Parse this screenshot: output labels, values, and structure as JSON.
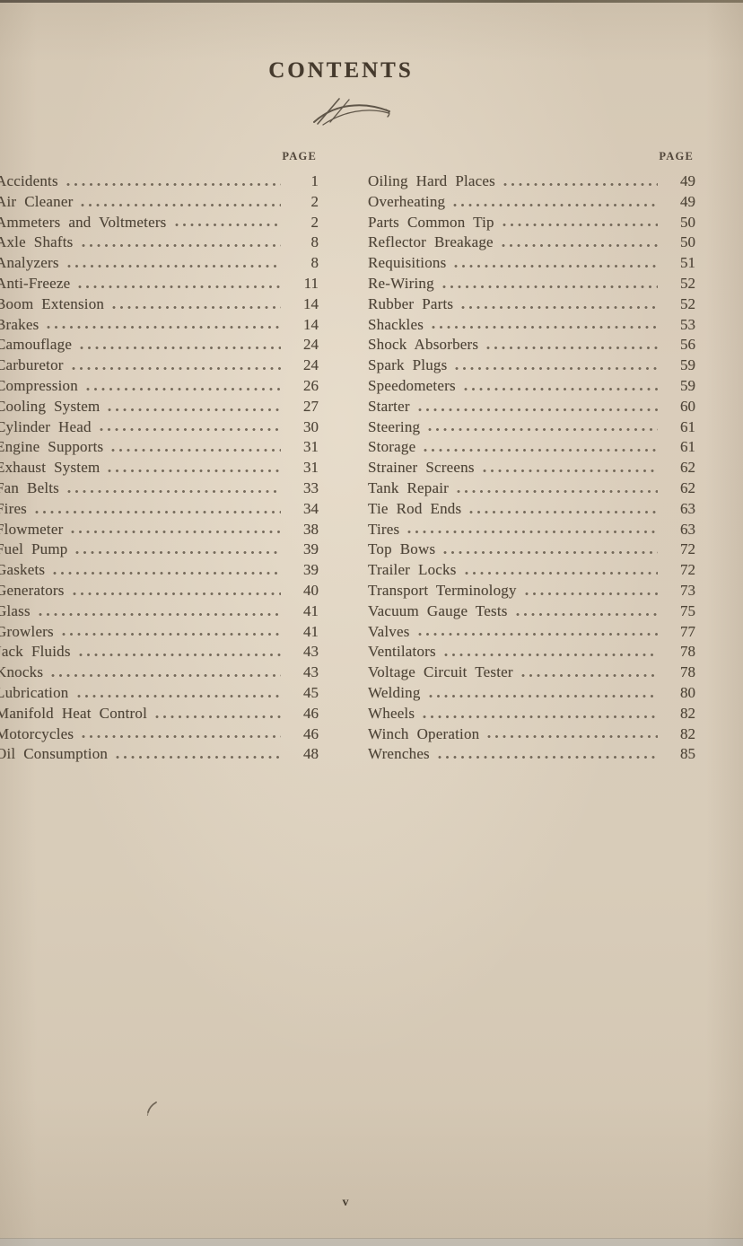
{
  "colors": {
    "paper": "#d8ccb9",
    "ink": "#4e4437",
    "title_ink": "#453a2d"
  },
  "toc": {
    "title": "CONTENTS",
    "page_label": "PAGE",
    "footer_page_number": "v",
    "columns": [
      {
        "entries": [
          {
            "label": "Accidents",
            "page": "1"
          },
          {
            "label": "Air Cleaner",
            "page": "2"
          },
          {
            "label": "Ammeters and Voltmeters",
            "page": "2"
          },
          {
            "label": "Axle Shafts",
            "page": "8"
          },
          {
            "label": "Analyzers",
            "page": "8"
          },
          {
            "label": "Anti-Freeze",
            "page": "11"
          },
          {
            "label": "Boom Extension",
            "page": "14"
          },
          {
            "label": "Brakes",
            "page": "14"
          },
          {
            "label": "Camouflage",
            "page": "24"
          },
          {
            "label": "Carburetor",
            "page": "24"
          },
          {
            "label": "Compression",
            "page": "26"
          },
          {
            "label": "Cooling System",
            "page": "27"
          },
          {
            "label": "Cylinder Head",
            "page": "30"
          },
          {
            "label": "Engine Supports",
            "page": "31"
          },
          {
            "label": "Exhaust System",
            "page": "31"
          },
          {
            "label": "Fan Belts",
            "page": "33"
          },
          {
            "label": "Fires",
            "page": "34"
          },
          {
            "label": "Flowmeter",
            "page": "38"
          },
          {
            "label": "Fuel Pump",
            "page": "39"
          },
          {
            "label": "Gaskets",
            "page": "39"
          },
          {
            "label": "Generators",
            "page": "40"
          },
          {
            "label": "Glass",
            "page": "41"
          },
          {
            "label": "Growlers",
            "page": "41"
          },
          {
            "label": "Jack Fluids",
            "page": "43"
          },
          {
            "label": "Knocks",
            "page": "43"
          },
          {
            "label": "Lubrication",
            "page": "45"
          },
          {
            "label": "Manifold Heat Control",
            "page": "46"
          },
          {
            "label": "Motorcycles",
            "page": "46"
          },
          {
            "label": "Oil Consumption",
            "page": "48"
          }
        ]
      },
      {
        "entries": [
          {
            "label": "Oiling Hard Places",
            "page": "49"
          },
          {
            "label": "Overheating",
            "page": "49"
          },
          {
            "label": "Parts Common Tip",
            "page": "50"
          },
          {
            "label": "Reflector Breakage",
            "page": "50"
          },
          {
            "label": "Requisitions",
            "page": "51"
          },
          {
            "label": "Re-Wiring",
            "page": "52"
          },
          {
            "label": "Rubber Parts",
            "page": "52"
          },
          {
            "label": "Shackles",
            "page": "53"
          },
          {
            "label": "Shock Absorbers",
            "page": "56"
          },
          {
            "label": "Spark Plugs",
            "page": "59"
          },
          {
            "label": "Speedometers",
            "page": "59"
          },
          {
            "label": "Starter",
            "page": "60"
          },
          {
            "label": "Steering",
            "page": "61"
          },
          {
            "label": "Storage",
            "page": "61"
          },
          {
            "label": "Strainer Screens",
            "page": "62"
          },
          {
            "label": "Tank Repair",
            "page": "62"
          },
          {
            "label": "Tie Rod Ends",
            "page": "63"
          },
          {
            "label": "Tires",
            "page": "63"
          },
          {
            "label": "Top Bows",
            "page": "72"
          },
          {
            "label": "Trailer Locks",
            "page": "72"
          },
          {
            "label": "Transport Terminology",
            "page": "73"
          },
          {
            "label": "Vacuum Gauge Tests",
            "page": "75"
          },
          {
            "label": "Valves",
            "page": "77"
          },
          {
            "label": "Ventilators",
            "page": "78"
          },
          {
            "label": "Voltage Circuit Tester",
            "page": "78"
          },
          {
            "label": "Welding",
            "page": "80"
          },
          {
            "label": "Wheels",
            "page": "82"
          },
          {
            "label": "Winch Operation",
            "page": "82"
          },
          {
            "label": "Wrenches",
            "page": "85"
          }
        ]
      }
    ]
  }
}
